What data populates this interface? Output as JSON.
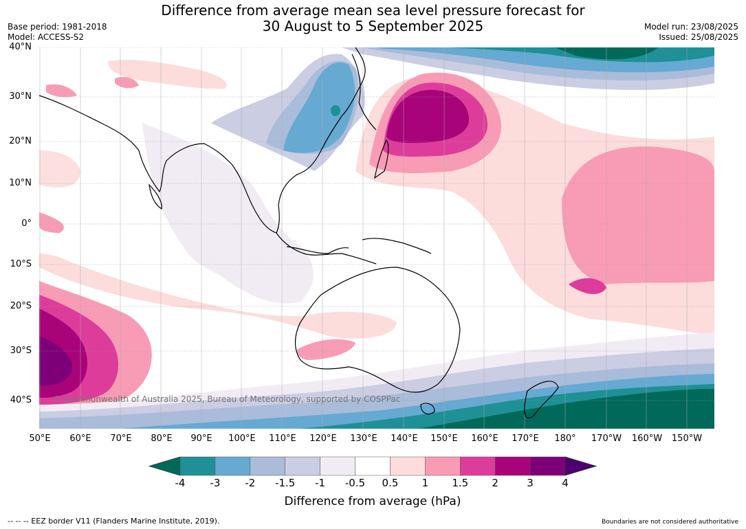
{
  "title_line1": "Difference from average mean sea level pressure forecast for",
  "title_line2": "30 August to 5 September 2025",
  "meta_left": [
    "Base period: 1981-2018",
    "Model: ACCESS-S2"
  ],
  "meta_right": [
    "Model run: 23/08/2025",
    "Issued: 25/08/2025"
  ],
  "lat_labels": [
    "40°N",
    "30°N",
    "20°N",
    "10°N",
    "0°",
    "10°S",
    "20°S",
    "30°S",
    "40°S"
  ],
  "lon_labels": [
    "50°E",
    "60°E",
    "70°E",
    "80°E",
    "90°E",
    "100°E",
    "110°E",
    "120°E",
    "130°E",
    "140°E",
    "150°E",
    "160°E",
    "170°E",
    "180°",
    "170°W",
    "160°W",
    "150°W"
  ],
  "copyright": "© Commonwealth of Australia 2025, Bureau of Meteorology, supported by COSPPac",
  "colorbar": {
    "ticks": [
      "-4",
      "-3",
      "-2",
      "-1.5",
      "-1",
      "-0.5",
      "0.5",
      "1",
      "1.5",
      "2",
      "3",
      "4"
    ],
    "colors": [
      "#00695a",
      "#1e9096",
      "#66a9d2",
      "#a9bcd9",
      "#cbcde3",
      "#f1ecf4",
      "#ffffff",
      "#fddcdc",
      "#f89cb6",
      "#de3c9a",
      "#a9037a",
      "#7d0078",
      "#4e0070"
    ],
    "label": "Difference from average (hPa)"
  },
  "footer_left": "-- -- -- EEZ border V11 (Flanders Marine Institute, 2019).",
  "footer_right": "Boundaries are not considered authoritative"
}
